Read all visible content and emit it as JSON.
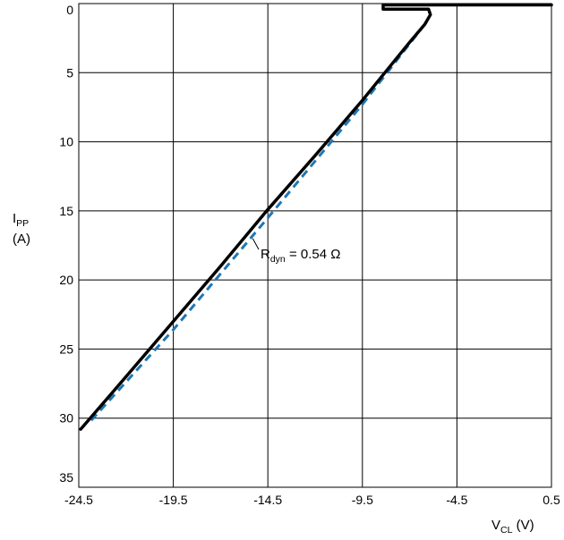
{
  "chart_data": {
    "type": "line",
    "title": "",
    "ylabel": {
      "main": "I",
      "sub": "PP",
      "unit": "(A)"
    },
    "xlabel": {
      "main": "V",
      "sub": "CL",
      "unit": " (V)"
    },
    "xlim": [
      -24.5,
      0.5
    ],
    "ylim": [
      0,
      35
    ],
    "y_inverted": true,
    "grid": true,
    "x_ticks": [
      "-24.5",
      "-19.5",
      "-14.5",
      "-9.5",
      "-4.5",
      "0.5"
    ],
    "x_tick_values": [
      -24.5,
      -19.5,
      -14.5,
      -9.5,
      -4.5,
      0.5
    ],
    "y_ticks": [
      "0",
      "5",
      "10",
      "15",
      "20",
      "25",
      "30",
      "35"
    ],
    "y_tick_values": [
      0,
      5,
      10,
      15,
      20,
      25,
      30,
      35
    ],
    "series": [
      {
        "style": "solid",
        "color": "#000000",
        "x": [
          0.5,
          -8.4,
          -8.4,
          -6.0,
          -5.9,
          -6.2,
          -7.0,
          -9.5,
          -12.0,
          -14.5,
          -17.0,
          -19.5,
          -22.0,
          -24.4
        ],
        "y": [
          0.1,
          0.1,
          0.4,
          0.4,
          0.8,
          1.5,
          2.8,
          7.0,
          11.0,
          14.9,
          19.0,
          23.0,
          27.0,
          30.8
        ]
      },
      {
        "style": "dashed",
        "color": "#1f77b4",
        "x": [
          -6.2,
          -9.5,
          -14.5,
          -19.5,
          -24.0
        ],
        "y": [
          1.5,
          7.3,
          15.5,
          23.6,
          30.4
        ]
      }
    ],
    "annotations": [
      {
        "main": "R",
        "sub": "dyn",
        "rest": " = 0.54 Ω",
        "point": {
          "x": -15.3,
          "y": 17.0
        }
      }
    ]
  }
}
